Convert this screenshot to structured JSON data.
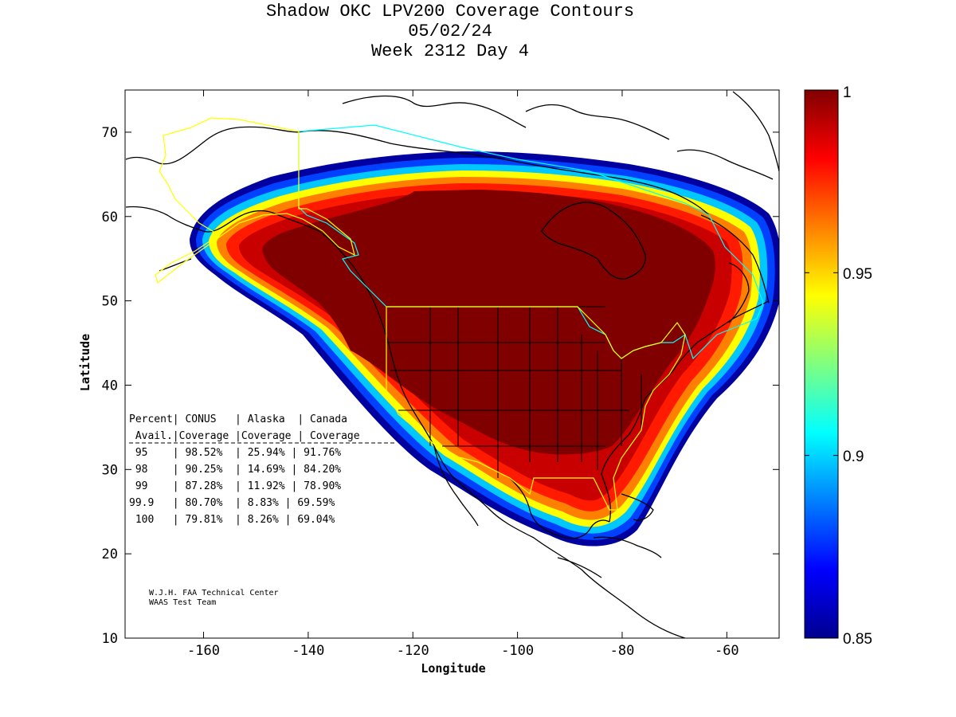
{
  "title": {
    "line1": "Shadow OKC LPV200 Coverage Contours",
    "line2": "05/02/24",
    "line3": "Week 2312 Day 4"
  },
  "axes": {
    "xlabel": "Longitude",
    "ylabel": "Latitude",
    "xlim": [
      -175,
      -50
    ],
    "ylim": [
      10,
      75
    ],
    "xticks": [
      -160,
      -140,
      -120,
      -100,
      -80,
      -60
    ],
    "yticks": [
      10,
      20,
      30,
      40,
      50,
      60,
      70
    ]
  },
  "colorbar": {
    "range": [
      0.85,
      1
    ],
    "labels": [
      "1",
      "0.95",
      "0.9",
      "0.85"
    ],
    "colormap": "jet"
  },
  "table": {
    "header1": "Percent| CONUS   | Alaska  | Canada",
    "header2": " Avail.|Coverage |Coverage | Coverage",
    "rows": [
      " 95    | 98.52%  | 25.94% | 91.76%",
      " 98    | 90.25%  | 14.69% | 84.20%",
      " 99    | 87.28%  | 11.92% | 78.90%",
      "99.9   | 80.70%  | 8.83% | 69.59%",
      " 100   | 79.81%  | 8.26% | 69.04%"
    ]
  },
  "credit": {
    "line1": "W.J.H. FAA Technical Center",
    "line2": "WAAS Test Team"
  },
  "colors": {
    "core": "#800000",
    "alaska_boundary": "#ffff00",
    "canada_boundary": "#00ffff"
  }
}
